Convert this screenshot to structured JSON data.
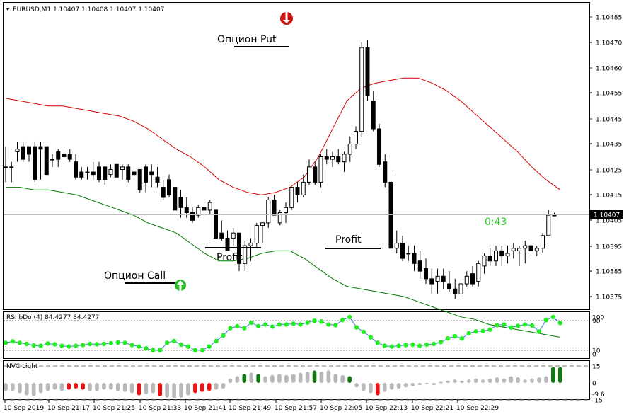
{
  "header": {
    "symbol_text": "EURUSD,M1  1.10407 1.10408 1.10407 1.10407"
  },
  "annotations": {
    "put_label": "Опцион Put",
    "call_label": "Опцион Call",
    "profit_left": "Profit",
    "profit_right": "Profit",
    "countdown": "0:43"
  },
  "price_axis": {
    "ticks": [
      "1.10485",
      "1.10470",
      "1.10460",
      "1.10455",
      "1.10445",
      "1.10435",
      "1.10425",
      "1.10415",
      "1.10405",
      "1.10395",
      "1.10385",
      "1.10375"
    ],
    "current_price": "1.10407"
  },
  "rsi_panel": {
    "label": "RSI bDo (4) 84.4277 84.4277",
    "ticks": [
      "100",
      "90",
      "10",
      "0"
    ]
  },
  "nvc_panel": {
    "label": "NVC Light",
    "ticks": [
      "15",
      "0",
      "-9.6",
      "-15"
    ]
  },
  "time_axis": {
    "labels": [
      "10 Sep 2019",
      "10 Sep 21:17",
      "10 Sep 21:25",
      "10 Sep 21:33",
      "10 Sep 21:41",
      "10 Sep 21:49",
      "10 Sep 21:57",
      "10 Sep 22:05",
      "10 Sep 22:13",
      "10 Sep 22:21",
      "10 Sep 22:29"
    ]
  },
  "colors": {
    "bull_candle": "#ffffff",
    "bear_candle": "#000000",
    "upper_band": "#d40000",
    "lower_band": "#007a00",
    "rsi_dot": "#22ee22",
    "rsi_line": "#3a7bd5",
    "nvc_neutral": "#b8b8b8",
    "nvc_red": "#ee1111",
    "nvc_green": "#117711",
    "countdown": "#22cc22"
  },
  "chart_data": {
    "type": "candlestick",
    "symbol": "EURUSD",
    "timeframe": "M1",
    "note_ohlc": "each row: open, high, low, close",
    "ohlc": [
      [
        1.10426,
        1.10434,
        1.1042,
        1.10426
      ],
      [
        1.10426,
        1.10428,
        1.1042,
        1.10426
      ],
      [
        1.10432,
        1.10436,
        1.10428,
        1.10433
      ],
      [
        1.10434,
        1.10436,
        1.10428,
        1.10429
      ],
      [
        1.10434,
        1.10434,
        1.10428,
        1.10431
      ],
      [
        1.10434,
        1.10436,
        1.1042,
        1.10421
      ],
      [
        1.10434,
        1.10436,
        1.10421,
        1.10433
      ],
      [
        1.10434,
        1.10434,
        1.10423,
        1.10423
      ],
      [
        1.10429,
        1.10431,
        1.10426,
        1.10429
      ],
      [
        1.10432,
        1.10433,
        1.10426,
        1.10429
      ],
      [
        1.10431,
        1.10433,
        1.10429,
        1.1043
      ],
      [
        1.10431,
        1.10433,
        1.10428,
        1.10429
      ],
      [
        1.10428,
        1.10431,
        1.10421,
        1.10422
      ],
      [
        1.10424,
        1.10426,
        1.10421,
        1.10422
      ],
      [
        1.10424,
        1.10426,
        1.10421,
        1.10424
      ],
      [
        1.10424,
        1.10428,
        1.10421,
        1.10423
      ],
      [
        1.10426,
        1.10428,
        1.1042,
        1.10421
      ],
      [
        1.10426,
        1.10426,
        1.10419,
        1.10421
      ],
      [
        1.10423,
        1.10427,
        1.10422,
        1.10425
      ],
      [
        1.10427,
        1.10427,
        1.10422,
        1.10422
      ],
      [
        1.10425,
        1.10427,
        1.10421,
        1.10426
      ],
      [
        1.10426,
        1.10427,
        1.1042,
        1.10421
      ],
      [
        1.10424,
        1.10427,
        1.10421,
        1.10423
      ],
      [
        1.10425,
        1.10425,
        1.10416,
        1.10417
      ],
      [
        1.10426,
        1.10427,
        1.10416,
        1.1042
      ],
      [
        1.10424,
        1.10427,
        1.10418,
        1.10423
      ],
      [
        1.10422,
        1.10426,
        1.10418,
        1.1042
      ],
      [
        1.10418,
        1.10421,
        1.10413,
        1.10414
      ],
      [
        1.10421,
        1.10423,
        1.10414,
        1.10415
      ],
      [
        1.10418,
        1.10418,
        1.10409,
        1.10409
      ],
      [
        1.10414,
        1.10417,
        1.10406,
        1.1041
      ],
      [
        1.1041,
        1.10414,
        1.10406,
        1.10408
      ],
      [
        1.10408,
        1.1041,
        1.10404,
        1.10405
      ],
      [
        1.10407,
        1.10411,
        1.10406,
        1.1041
      ],
      [
        1.1041,
        1.10412,
        1.10407,
        1.10409
      ],
      [
        1.10409,
        1.10413,
        1.10407,
        1.10412
      ],
      [
        1.10409,
        1.10409,
        1.10398,
        1.10398
      ],
      [
        1.104,
        1.10405,
        1.10397,
        1.10398
      ],
      [
        1.10398,
        1.10401,
        1.10393,
        1.10393
      ],
      [
        1.10398,
        1.10402,
        1.10395,
        1.104
      ],
      [
        1.104,
        1.104,
        1.10385,
        1.10388
      ],
      [
        1.10388,
        1.10397,
        1.10385,
        1.10395
      ],
      [
        1.10395,
        1.10398,
        1.10389,
        1.10396
      ],
      [
        1.10396,
        1.10404,
        1.10394,
        1.10403
      ],
      [
        1.10403,
        1.10404,
        1.10396,
        1.10404
      ],
      [
        1.10404,
        1.10414,
        1.10402,
        1.10413
      ],
      [
        1.10413,
        1.10415,
        1.10407,
        1.10407
      ],
      [
        1.10404,
        1.10409,
        1.10403,
        1.10408
      ],
      [
        1.10408,
        1.10412,
        1.10404,
        1.1041
      ],
      [
        1.1041,
        1.10418,
        1.10409,
        1.10418
      ],
      [
        1.10418,
        1.1042,
        1.10412,
        1.10415
      ],
      [
        1.10415,
        1.10423,
        1.10414,
        1.1042
      ],
      [
        1.1042,
        1.10429,
        1.10419,
        1.10426
      ],
      [
        1.10426,
        1.10428,
        1.10419,
        1.1042
      ],
      [
        1.1042,
        1.10431,
        1.10418,
        1.1043
      ],
      [
        1.1043,
        1.10433,
        1.10427,
        1.10429
      ],
      [
        1.10429,
        1.10432,
        1.10426,
        1.1043
      ],
      [
        1.1043,
        1.10433,
        1.10427,
        1.10428
      ],
      [
        1.10428,
        1.10432,
        1.10424,
        1.10431
      ],
      [
        1.10431,
        1.10438,
        1.10428,
        1.10435
      ],
      [
        1.10435,
        1.10442,
        1.10433,
        1.1044
      ],
      [
        1.1044,
        1.10475,
        1.10438,
        1.10473
      ],
      [
        1.10473,
        1.10476,
        1.10452,
        1.10454
      ],
      [
        1.10452,
        1.10456,
        1.1044,
        1.10441
      ],
      [
        1.10441,
        1.10443,
        1.10426,
        1.10427
      ],
      [
        1.10428,
        1.10431,
        1.10418,
        1.1042
      ],
      [
        1.1042,
        1.10424,
        1.10393,
        1.10394
      ],
      [
        1.10394,
        1.10401,
        1.10392,
        1.10396
      ],
      [
        1.10396,
        1.10399,
        1.10389,
        1.1039
      ],
      [
        1.10392,
        1.10395,
        1.10389,
        1.10392
      ],
      [
        1.10392,
        1.10395,
        1.10385,
        1.10388
      ],
      [
        1.10389,
        1.10393,
        1.10382,
        1.10385
      ],
      [
        1.10386,
        1.1039,
        1.1038,
        1.10382
      ],
      [
        1.10382,
        1.10386,
        1.10376,
        1.1038
      ],
      [
        1.10381,
        1.10386,
        1.10376,
        1.10383
      ],
      [
        1.10383,
        1.10386,
        1.10378,
        1.10381
      ],
      [
        1.1038,
        1.10385,
        1.10377,
        1.10378
      ],
      [
        1.10378,
        1.10382,
        1.10374,
        1.10376
      ],
      [
        1.10376,
        1.10382,
        1.10375,
        1.1038
      ],
      [
        1.1038,
        1.10385,
        1.10379,
        1.10383
      ],
      [
        1.10384,
        1.10387,
        1.10379,
        1.1038
      ],
      [
        1.10381,
        1.10389,
        1.10379,
        1.10388
      ],
      [
        1.10387,
        1.10392,
        1.10384,
        1.10391
      ],
      [
        1.10391,
        1.10394,
        1.10387,
        1.10389
      ],
      [
        1.10389,
        1.10395,
        1.10387,
        1.10393
      ],
      [
        1.10393,
        1.10395,
        1.10387,
        1.10391
      ],
      [
        1.10391,
        1.10395,
        1.10388,
        1.10392
      ],
      [
        1.10393,
        1.10396,
        1.1039,
        1.10394
      ],
      [
        1.10393,
        1.10395,
        1.10387,
        1.10394
      ],
      [
        1.10394,
        1.10397,
        1.10388,
        1.10395
      ],
      [
        1.10395,
        1.10398,
        1.10391,
        1.10393
      ],
      [
        1.10393,
        1.10395,
        1.10391,
        1.10394
      ],
      [
        1.10394,
        1.104,
        1.10392,
        1.10399
      ],
      [
        1.10399,
        1.10409,
        1.10399,
        1.10407
      ],
      [
        1.10407,
        1.10408,
        1.10407,
        1.10407
      ]
    ],
    "upper_band": [
      1.10453,
      1.10452,
      1.10451,
      1.1045,
      1.1045,
      1.10449,
      1.10448,
      1.10447,
      1.10446,
      1.10444,
      1.10441,
      1.10437,
      1.10433,
      1.1043,
      1.10426,
      1.10421,
      1.10418,
      1.10416,
      1.10415,
      1.10416,
      1.10418,
      1.10422,
      1.1043,
      1.10441,
      1.10452,
      1.10457,
      1.10459,
      1.1046,
      1.10461,
      1.10461,
      1.10459,
      1.10456,
      1.10452,
      1.10447,
      1.10442,
      1.10437,
      1.10432,
      1.10426,
      1.10421,
      1.10417
    ],
    "lower_band": [
      1.10418,
      1.10418,
      1.10417,
      1.10417,
      1.10416,
      1.10415,
      1.10413,
      1.10411,
      1.10409,
      1.10407,
      1.10404,
      1.10402,
      1.104,
      1.10396,
      1.10392,
      1.10389,
      1.10389,
      1.1039,
      1.10392,
      1.10393,
      1.10393,
      1.1039,
      1.10386,
      1.10382,
      1.10379,
      1.10378,
      1.10377,
      1.10376,
      1.10375,
      1.10373,
      1.10371,
      1.10369,
      1.10367,
      1.10366,
      1.10364,
      1.10363,
      1.10362,
      1.10361,
      1.1036,
      1.10359
    ],
    "rsi": [
      30,
      34,
      30,
      27,
      23,
      22,
      28,
      26,
      22,
      20,
      22,
      24,
      27,
      26,
      27,
      29,
      31,
      30,
      24,
      20,
      15,
      10,
      10,
      30,
      35,
      25,
      20,
      10,
      10,
      20,
      35,
      50,
      70,
      75,
      70,
      85,
      75,
      80,
      74,
      80,
      80,
      82,
      80,
      85,
      90,
      88,
      80,
      78,
      92,
      100,
      72,
      60,
      45,
      30,
      22,
      20,
      22,
      24,
      25,
      22,
      25,
      27,
      32,
      42,
      48,
      42,
      56,
      61,
      62,
      66,
      78,
      80,
      72,
      76,
      80,
      77,
      61,
      92,
      100,
      84
    ],
    "nvc": [
      -7,
      -7,
      -9,
      -11,
      -12,
      -9,
      -7,
      -6,
      -7,
      -6,
      -5,
      -6,
      -7,
      -7,
      -6,
      -6,
      -7,
      -8,
      -9,
      -11,
      -10,
      -9,
      -12,
      -13,
      -14,
      -13,
      -11,
      -9,
      -8,
      -7,
      -6,
      -5,
      4,
      6,
      8,
      9,
      8,
      6,
      7,
      8,
      7,
      8,
      9,
      10,
      11,
      10,
      11,
      8,
      7,
      6,
      -4,
      -7,
      -9,
      -11,
      -8,
      -6,
      -5,
      -4,
      -3,
      -2,
      -1,
      -2,
      1,
      2,
      3,
      2,
      3,
      4,
      3,
      4,
      5,
      4,
      6,
      5,
      3,
      4,
      5,
      6,
      14,
      14
    ],
    "nvc_red_indices": [
      9,
      10,
      11,
      19,
      22,
      27,
      28,
      29,
      53
    ],
    "nvc_green_indices": [
      34,
      36,
      44,
      49,
      78,
      79
    ]
  }
}
